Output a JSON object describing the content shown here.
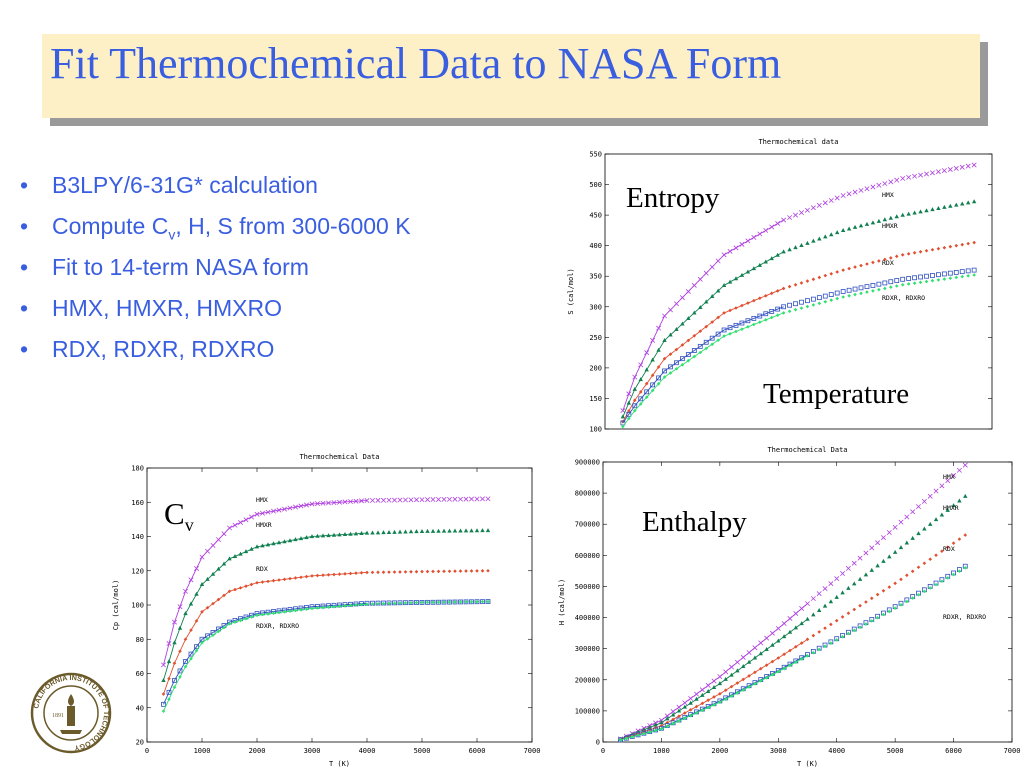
{
  "slide": {
    "title": "Fit Thermochemical Data to NASA Form",
    "bullets": {
      "b1": "B3LPY/6-31G* calculation",
      "b2_pre": "Compute C",
      "b2_sub": "v",
      "b2_post": ", H, S from 300-6000 K",
      "b3": "Fit to 14-term NASA form",
      "b4": "HMX, HMXR, HMXRO",
      "b5": "RDX, RDXR, RDXRO"
    },
    "bullet_symbol": "•",
    "overlays": {
      "entropy": "Entropy",
      "temperature": "Temperature",
      "cv_main": "C",
      "cv_sub": "v",
      "enthalpy": "Enthalpy"
    },
    "colors": {
      "title_text": "#3a5ee0",
      "title_box": "#fdf0c7",
      "title_shadow": "#9a9a9a",
      "bullet_text": "#3a5ee0"
    },
    "logo": {
      "icon": "caltech-seal-icon",
      "lettering": "CALIFORNIA INSTITUTE OF TECHNOLOGY 1891"
    }
  },
  "chart_data": [
    {
      "id": "entropy",
      "type": "line",
      "title": "Thermochemical data",
      "xlabel": "",
      "ylabel": "S (cal/mol)",
      "xlim": [
        0,
        6500
      ],
      "ylim": [
        100,
        550
      ],
      "xticks": [],
      "yticks": [
        100,
        150,
        200,
        250,
        300,
        350,
        400,
        450,
        500,
        550
      ],
      "grid": false,
      "series": [
        {
          "name": "HMX",
          "color": "#b040e0",
          "marker": "x",
          "x": [
            300,
            500,
            1000,
            2000,
            3000,
            4000,
            5000,
            6200
          ],
          "y": [
            130,
            185,
            285,
            385,
            442,
            482,
            510,
            532
          ]
        },
        {
          "name": "HMXR",
          "color": "#108050",
          "marker": "tri",
          "x": [
            300,
            500,
            1000,
            2000,
            3000,
            4000,
            5000,
            6200
          ],
          "y": [
            120,
            165,
            245,
            335,
            390,
            425,
            450,
            472
          ]
        },
        {
          "name": "RDX",
          "color": "#e05030",
          "marker": "dot",
          "x": [
            300,
            500,
            1000,
            2000,
            3000,
            4000,
            5000,
            6200
          ],
          "y": [
            112,
            147,
            215,
            290,
            330,
            360,
            385,
            405
          ]
        },
        {
          "name": "RDXR, RDXRO",
          "color": "#3050c0",
          "marker": "sq",
          "x": [
            300,
            500,
            1000,
            2000,
            3000,
            4000,
            5000,
            6200
          ],
          "y": [
            110,
            138,
            195,
            262,
            300,
            325,
            345,
            360
          ]
        },
        {
          "name": "",
          "color": "#30e070",
          "marker": "dot",
          "x": [
            300,
            500,
            1000,
            2000,
            3000,
            4000,
            5000,
            6200
          ],
          "y": [
            104,
            130,
            185,
            252,
            290,
            316,
            336,
            352
          ]
        }
      ]
    },
    {
      "id": "cv",
      "type": "line",
      "title": "Thermochemical Data",
      "xlabel": "T (K)",
      "ylabel": "Cp (cal/mol)",
      "xlim": [
        0,
        7000
      ],
      "ylim": [
        20,
        180
      ],
      "xticks": [
        0,
        1000,
        2000,
        3000,
        4000,
        5000,
        6000,
        7000
      ],
      "yticks": [
        20,
        40,
        60,
        80,
        100,
        120,
        140,
        160,
        180
      ],
      "grid": false,
      "series": [
        {
          "name": "HMX",
          "color": "#b040e0",
          "marker": "x",
          "x": [
            300,
            500,
            700,
            1000,
            1500,
            2000,
            3000,
            4000,
            5000,
            6200
          ],
          "y": [
            65,
            90,
            108,
            128,
            145,
            153,
            159,
            161,
            161.5,
            162
          ]
        },
        {
          "name": "HMXR",
          "color": "#108050",
          "marker": "tri",
          "x": [
            300,
            500,
            700,
            1000,
            1500,
            2000,
            3000,
            4000,
            5000,
            6200
          ],
          "y": [
            56,
            78,
            95,
            112,
            127,
            134,
            140,
            142,
            143,
            143.5
          ]
        },
        {
          "name": "RDX",
          "color": "#e05030",
          "marker": "dot",
          "x": [
            300,
            500,
            700,
            1000,
            1500,
            2000,
            3000,
            4000,
            5000,
            6200
          ],
          "y": [
            48,
            66,
            80,
            96,
            108,
            113,
            117,
            119,
            119.5,
            120
          ]
        },
        {
          "name": "RDXR, RDXRO",
          "color": "#3050c0",
          "marker": "sq",
          "x": [
            300,
            500,
            700,
            1000,
            1500,
            2000,
            3000,
            4000,
            5000,
            6200
          ],
          "y": [
            42,
            56,
            67,
            80,
            90,
            95,
            99,
            101,
            101.5,
            102
          ]
        },
        {
          "name": "",
          "color": "#30e070",
          "marker": "dot",
          "x": [
            300,
            500,
            700,
            1000,
            1500,
            2000,
            3000,
            4000,
            5000,
            6200
          ],
          "y": [
            38,
            52,
            64,
            78,
            89,
            94,
            98,
            100.5,
            101.5,
            102
          ]
        }
      ]
    },
    {
      "id": "enthalpy",
      "type": "line",
      "title": "Thermochemical Data",
      "xlabel": "T (K)",
      "ylabel": "H (cal/mol)",
      "xlim": [
        0,
        7000
      ],
      "ylim": [
        0,
        900000
      ],
      "xticks": [
        0,
        1000,
        2000,
        3000,
        4000,
        5000,
        6000,
        7000
      ],
      "yticks": [
        0,
        100000,
        200000,
        300000,
        400000,
        500000,
        600000,
        700000,
        800000,
        900000
      ],
      "grid": false,
      "series": [
        {
          "name": "HMX",
          "color": "#b040e0",
          "marker": "x",
          "x": [
            300,
            1000,
            2000,
            3000,
            4000,
            5000,
            6200
          ],
          "y": [
            10000,
            70000,
            210000,
            365000,
            525000,
            690000,
            890000
          ]
        },
        {
          "name": "HMXR",
          "color": "#108050",
          "marker": "tri",
          "x": [
            300,
            1000,
            2000,
            3000,
            4000,
            5000,
            6200
          ],
          "y": [
            9000,
            62000,
            188000,
            325000,
            465000,
            610000,
            790000
          ]
        },
        {
          "name": "RDX",
          "color": "#e05030",
          "marker": "dot",
          "x": [
            300,
            1000,
            2000,
            3000,
            4000,
            5000,
            6200
          ],
          "y": [
            8000,
            52000,
            155000,
            270000,
            390000,
            510000,
            665000
          ]
        },
        {
          "name": "RDXR, RDXRO",
          "color": "#3050c0",
          "marker": "sq",
          "x": [
            300,
            1000,
            2000,
            3000,
            4000,
            5000,
            6200
          ],
          "y": [
            7000,
            44000,
            132000,
            230000,
            332000,
            435000,
            565000
          ]
        },
        {
          "name": "",
          "color": "#30e070",
          "marker": "dot",
          "x": [
            300,
            1000,
            2000,
            3000,
            4000,
            5000,
            6200
          ],
          "y": [
            6500,
            42000,
            128000,
            226000,
            328000,
            430000,
            560000
          ]
        }
      ]
    }
  ]
}
